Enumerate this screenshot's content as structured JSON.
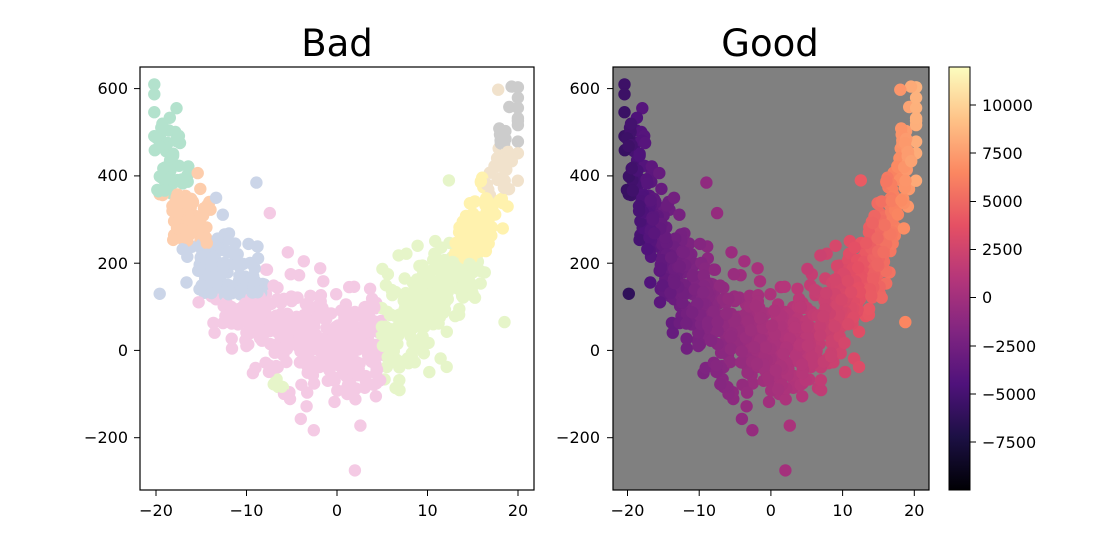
{
  "chart_data": [
    {
      "type": "scatter",
      "title": "Bad",
      "xlim": [
        -22,
        22
      ],
      "ylim": [
        -320,
        650
      ],
      "xticks": [
        -20,
        -10,
        0,
        10,
        20
      ],
      "xtick_labels": [
        "−20",
        "−10",
        "0",
        "10",
        "20"
      ],
      "yticks": [
        -200,
        0,
        200,
        400,
        600
      ],
      "ytick_labels": [
        "−200",
        "0",
        "200",
        "400",
        "600"
      ],
      "background": "#ffffff",
      "coloring": "categorical clusters (Pastel2 palette)",
      "cluster_colors": [
        "#b3e2cd",
        "#fdcdac",
        "#cbd5e8",
        "#f4cae4",
        "#e6f5c9",
        "#fff2ae",
        "#f1e2cc",
        "#cccccc"
      ],
      "clusters": [
        {
          "color": "#b3e2cd",
          "x_range": [
            -20.5,
            -16.5
          ],
          "y_range": [
            360,
            530
          ]
        },
        {
          "color": "#fdcdac",
          "x_range": [
            -20,
            -14
          ],
          "y_range": [
            250,
            430
          ]
        },
        {
          "color": "#cbd5e8",
          "x_range": [
            -20,
            -8
          ],
          "y_range": [
            130,
            385
          ]
        },
        {
          "color": "#f4cae4",
          "x_range": [
            -16,
            12
          ],
          "y_range": [
            -275,
            300
          ]
        },
        {
          "color": "#e6f5c9",
          "x_range": [
            5,
            20
          ],
          "y_range": [
            -230,
            365
          ]
        },
        {
          "color": "#fff2ae",
          "x_range": [
            13,
            20
          ],
          "y_range": [
            200,
            420
          ]
        },
        {
          "color": "#f1e2cc",
          "x_range": [
            16.5,
            20
          ],
          "y_range": [
            350,
            500
          ]
        },
        {
          "color": "#cccccc",
          "x_range": [
            18,
            20
          ],
          "y_range": [
            470,
            610
          ]
        }
      ],
      "sample_points_note": "approximately 1000 points forming a U-shaped band"
    },
    {
      "type": "scatter",
      "title": "Good",
      "xlim": [
        -22,
        22
      ],
      "ylim": [
        -320,
        650
      ],
      "xticks": [
        -20,
        -10,
        0,
        10,
        20
      ],
      "xtick_labels": [
        "−20",
        "−10",
        "0",
        "10",
        "20"
      ],
      "yticks": [
        -200,
        0,
        200,
        400,
        600
      ],
      "ytick_labels": [
        "−200",
        "0",
        "200",
        "400",
        "600"
      ],
      "background": "#808080",
      "coloring": "continuous colormap (magma)",
      "colorbar": {
        "min": -10000,
        "max": 12000,
        "ticks": [
          -7500,
          -5000,
          -2500,
          0,
          2500,
          5000,
          7500,
          10000
        ],
        "tick_labels": [
          "−7500",
          "−5000",
          "−2500",
          "0",
          "2500",
          "5000",
          "7500",
          "10000"
        ]
      },
      "highlight_points": [
        {
          "x": -19.5,
          "y": 520,
          "value": -10000
        },
        {
          "x": 19.5,
          "y": 605,
          "value": 12000
        },
        {
          "x": 2,
          "y": -275,
          "value": 600
        }
      ]
    }
  ]
}
